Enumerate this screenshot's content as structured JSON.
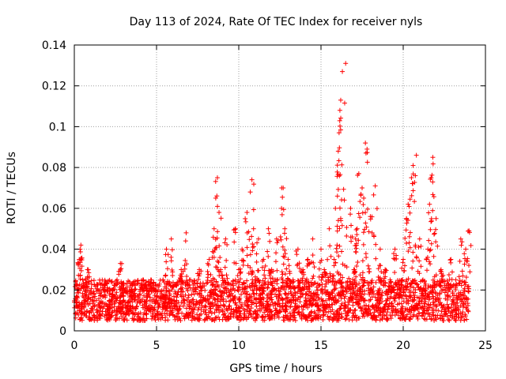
{
  "chart_data": {
    "type": "scatter",
    "title": "Day 113 of 2024, Rate Of TEC Index for receiver nyls",
    "xlabel": "GPS time / hours",
    "ylabel": "ROTI / TECUs",
    "xlim": [
      0,
      25
    ],
    "ylim": [
      0,
      0.14
    ],
    "xticks": [
      "0",
      "5",
      "10",
      "15",
      "20",
      "25"
    ],
    "yticks": [
      "0",
      "0.02",
      "0.04",
      "0.06",
      "0.08",
      "0.1",
      "0.12",
      "0.14"
    ],
    "grid": true,
    "marker": "plus",
    "color": "#ff0000",
    "series": [
      {
        "x": [
          0.1,
          0.2,
          0.3,
          0.35,
          0.4,
          0.5,
          0.6,
          0.8,
          1.0,
          1.2,
          1.5,
          1.8,
          2.0,
          2.3,
          2.6,
          2.8,
          3.0,
          3.2,
          3.5,
          3.8,
          4.0,
          4.3,
          4.6,
          4.9,
          5.2,
          5.4,
          5.6,
          5.9,
          6.2,
          6.5,
          6.8,
          7.0,
          7.3,
          7.6,
          7.9,
          8.2,
          8.5,
          8.6,
          8.7,
          8.8,
          8.9,
          9.2,
          9.5,
          9.8,
          10.0,
          10.2,
          10.5,
          10.7,
          10.8,
          10.9,
          11.0,
          11.2,
          11.5,
          11.8,
          12.0,
          12.3,
          12.6,
          12.7,
          12.8,
          13.0,
          13.3,
          13.6,
          13.9,
          14.2,
          14.5,
          14.8,
          15.0,
          15.2,
          15.5,
          15.8,
          16.0,
          16.05,
          16.1,
          16.15,
          16.2,
          16.3,
          16.5,
          16.8,
          17.0,
          17.1,
          17.2,
          17.3,
          17.5,
          17.6,
          17.7,
          17.8,
          18.0,
          18.3,
          18.6,
          18.9,
          19.2,
          19.5,
          19.8,
          20.0,
          20.2,
          20.3,
          20.5,
          20.6,
          20.8,
          21.0,
          21.2,
          21.5,
          21.6,
          21.7,
          21.8,
          22.0,
          22.3,
          22.6,
          22.9,
          23.2,
          23.5,
          23.8,
          24.0
        ],
        "y": [
          0.012,
          0.02,
          0.035,
          0.04,
          0.042,
          0.025,
          0.015,
          0.03,
          0.01,
          0.018,
          0.012,
          0.02,
          0.01,
          0.018,
          0.025,
          0.033,
          0.015,
          0.01,
          0.02,
          0.012,
          0.018,
          0.022,
          0.015,
          0.02,
          0.012,
          0.025,
          0.04,
          0.045,
          0.022,
          0.03,
          0.048,
          0.025,
          0.018,
          0.03,
          0.022,
          0.035,
          0.05,
          0.065,
          0.075,
          0.058,
          0.03,
          0.045,
          0.02,
          0.05,
          0.03,
          0.04,
          0.058,
          0.068,
          0.074,
          0.05,
          0.025,
          0.045,
          0.035,
          0.05,
          0.03,
          0.045,
          0.06,
          0.07,
          0.05,
          0.035,
          0.025,
          0.04,
          0.03,
          0.035,
          0.045,
          0.02,
          0.04,
          0.03,
          0.05,
          0.035,
          0.066,
          0.088,
          0.097,
          0.108,
          0.113,
          0.127,
          0.131,
          0.06,
          0.03,
          0.045,
          0.05,
          0.077,
          0.07,
          0.065,
          0.092,
          0.089,
          0.056,
          0.071,
          0.04,
          0.03,
          0.025,
          0.04,
          0.02,
          0.035,
          0.055,
          0.062,
          0.075,
          0.081,
          0.086,
          0.045,
          0.025,
          0.04,
          0.062,
          0.075,
          0.085,
          0.055,
          0.03,
          0.02,
          0.035,
          0.025,
          0.045,
          0.04,
          0.049
        ],
        "baseline_band": [
          0.005,
          0.025
        ]
      }
    ]
  }
}
